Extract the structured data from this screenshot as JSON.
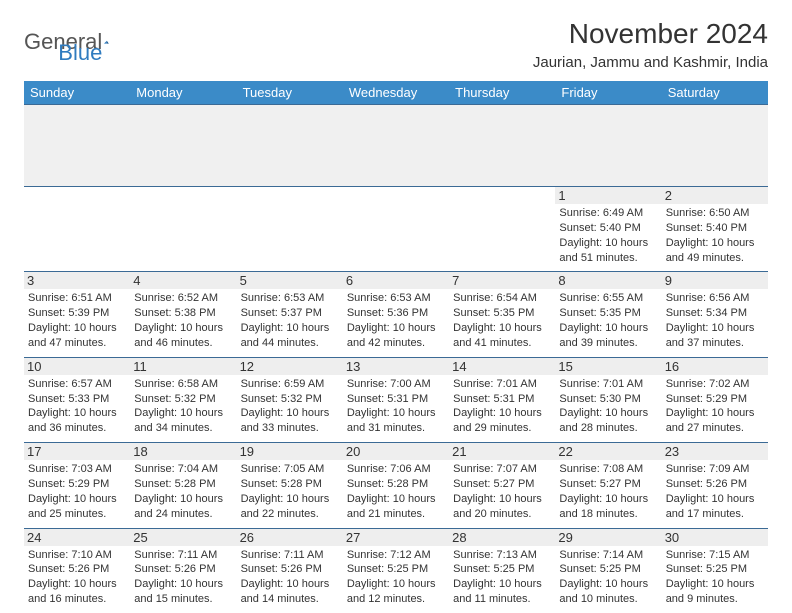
{
  "logo": {
    "general": "General",
    "blue": "Blue"
  },
  "title": "November 2024",
  "location": "Jaurian, Jammu and Kashmir, India",
  "colors": {
    "header_bg": "#3b8bc8",
    "header_text": "#ffffff",
    "border": "#3b6a95",
    "daynum_bg": "#eeeeee",
    "logo_blue": "#2f7bbf",
    "text": "#333333",
    "background": "#ffffff"
  },
  "typography": {
    "title_fontsize": 28,
    "location_fontsize": 15,
    "dayheader_fontsize": 13,
    "daynum_fontsize": 13,
    "info_fontsize": 11
  },
  "day_headers": [
    "Sunday",
    "Monday",
    "Tuesday",
    "Wednesday",
    "Thursday",
    "Friday",
    "Saturday"
  ],
  "weeks": [
    [
      null,
      null,
      null,
      null,
      null,
      {
        "n": "1",
        "sr": "6:49 AM",
        "ss": "5:40 PM",
        "dl": "10 hours and 51 minutes."
      },
      {
        "n": "2",
        "sr": "6:50 AM",
        "ss": "5:40 PM",
        "dl": "10 hours and 49 minutes."
      }
    ],
    [
      {
        "n": "3",
        "sr": "6:51 AM",
        "ss": "5:39 PM",
        "dl": "10 hours and 47 minutes."
      },
      {
        "n": "4",
        "sr": "6:52 AM",
        "ss": "5:38 PM",
        "dl": "10 hours and 46 minutes."
      },
      {
        "n": "5",
        "sr": "6:53 AM",
        "ss": "5:37 PM",
        "dl": "10 hours and 44 minutes."
      },
      {
        "n": "6",
        "sr": "6:53 AM",
        "ss": "5:36 PM",
        "dl": "10 hours and 42 minutes."
      },
      {
        "n": "7",
        "sr": "6:54 AM",
        "ss": "5:35 PM",
        "dl": "10 hours and 41 minutes."
      },
      {
        "n": "8",
        "sr": "6:55 AM",
        "ss": "5:35 PM",
        "dl": "10 hours and 39 minutes."
      },
      {
        "n": "9",
        "sr": "6:56 AM",
        "ss": "5:34 PM",
        "dl": "10 hours and 37 minutes."
      }
    ],
    [
      {
        "n": "10",
        "sr": "6:57 AM",
        "ss": "5:33 PM",
        "dl": "10 hours and 36 minutes."
      },
      {
        "n": "11",
        "sr": "6:58 AM",
        "ss": "5:32 PM",
        "dl": "10 hours and 34 minutes."
      },
      {
        "n": "12",
        "sr": "6:59 AM",
        "ss": "5:32 PM",
        "dl": "10 hours and 33 minutes."
      },
      {
        "n": "13",
        "sr": "7:00 AM",
        "ss": "5:31 PM",
        "dl": "10 hours and 31 minutes."
      },
      {
        "n": "14",
        "sr": "7:01 AM",
        "ss": "5:31 PM",
        "dl": "10 hours and 29 minutes."
      },
      {
        "n": "15",
        "sr": "7:01 AM",
        "ss": "5:30 PM",
        "dl": "10 hours and 28 minutes."
      },
      {
        "n": "16",
        "sr": "7:02 AM",
        "ss": "5:29 PM",
        "dl": "10 hours and 27 minutes."
      }
    ],
    [
      {
        "n": "17",
        "sr": "7:03 AM",
        "ss": "5:29 PM",
        "dl": "10 hours and 25 minutes."
      },
      {
        "n": "18",
        "sr": "7:04 AM",
        "ss": "5:28 PM",
        "dl": "10 hours and 24 minutes."
      },
      {
        "n": "19",
        "sr": "7:05 AM",
        "ss": "5:28 PM",
        "dl": "10 hours and 22 minutes."
      },
      {
        "n": "20",
        "sr": "7:06 AM",
        "ss": "5:28 PM",
        "dl": "10 hours and 21 minutes."
      },
      {
        "n": "21",
        "sr": "7:07 AM",
        "ss": "5:27 PM",
        "dl": "10 hours and 20 minutes."
      },
      {
        "n": "22",
        "sr": "7:08 AM",
        "ss": "5:27 PM",
        "dl": "10 hours and 18 minutes."
      },
      {
        "n": "23",
        "sr": "7:09 AM",
        "ss": "5:26 PM",
        "dl": "10 hours and 17 minutes."
      }
    ],
    [
      {
        "n": "24",
        "sr": "7:10 AM",
        "ss": "5:26 PM",
        "dl": "10 hours and 16 minutes."
      },
      {
        "n": "25",
        "sr": "7:11 AM",
        "ss": "5:26 PM",
        "dl": "10 hours and 15 minutes."
      },
      {
        "n": "26",
        "sr": "7:11 AM",
        "ss": "5:26 PM",
        "dl": "10 hours and 14 minutes."
      },
      {
        "n": "27",
        "sr": "7:12 AM",
        "ss": "5:25 PM",
        "dl": "10 hours and 12 minutes."
      },
      {
        "n": "28",
        "sr": "7:13 AM",
        "ss": "5:25 PM",
        "dl": "10 hours and 11 minutes."
      },
      {
        "n": "29",
        "sr": "7:14 AM",
        "ss": "5:25 PM",
        "dl": "10 hours and 10 minutes."
      },
      {
        "n": "30",
        "sr": "7:15 AM",
        "ss": "5:25 PM",
        "dl": "10 hours and 9 minutes."
      }
    ]
  ],
  "labels": {
    "sunrise": "Sunrise:",
    "sunset": "Sunset:",
    "daylight": "Daylight:"
  }
}
